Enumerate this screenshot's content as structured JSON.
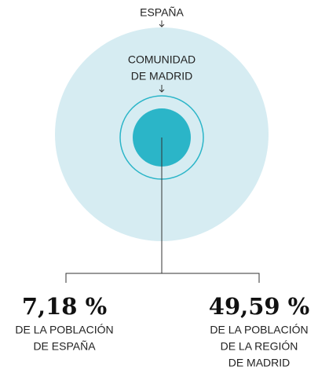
{
  "labels": {
    "outer": "ESPAÑA",
    "inner": [
      "COMUNIDAD",
      "DE MADRID"
    ]
  },
  "stats": [
    {
      "value": "7,18 %",
      "caption": [
        "DE LA POBLACIÓN",
        "DE ESPAÑA"
      ]
    },
    {
      "value": "49,59 %",
      "caption": [
        "DE LA POBLACIÓN",
        "DE LA REGIÓN",
        "DE MADRID"
      ]
    }
  ]
}
